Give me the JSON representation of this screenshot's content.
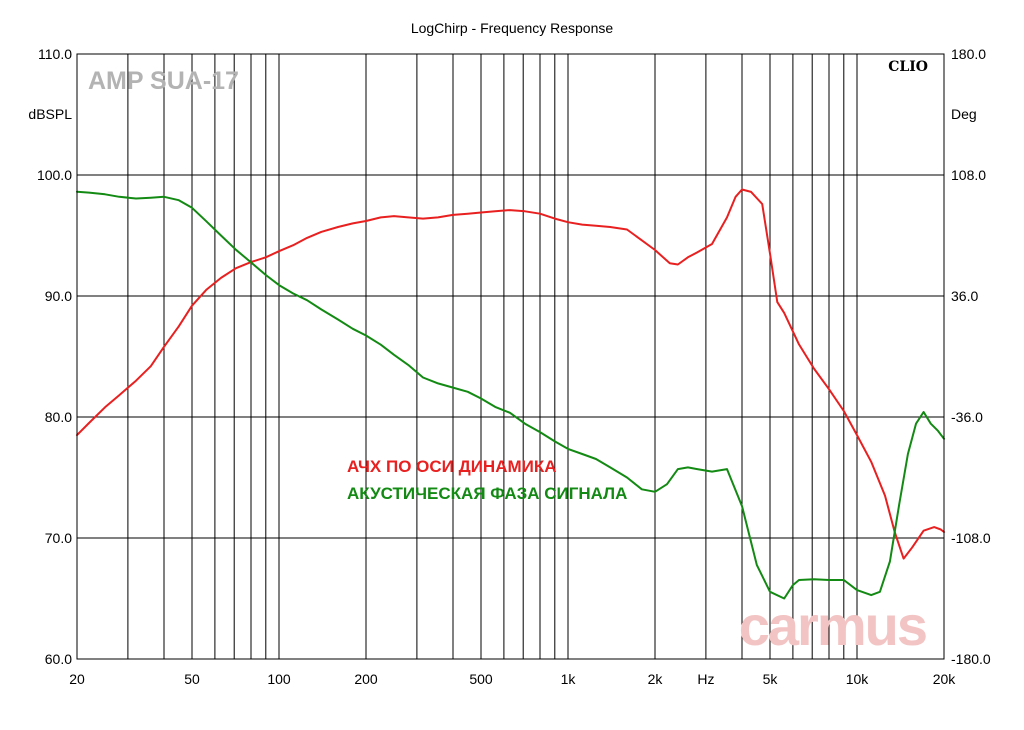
{
  "colors": {
    "background": "#ffffff",
    "plot_border": "#000000",
    "grid": "#000000",
    "magnitude_series": "#e82020",
    "phase_series": "#138a13",
    "watermark_model": "#b3b3b3",
    "watermark_site": "#f3c4c4"
  },
  "chart_data": {
    "type": "line",
    "title": "LogChirp - Frequency Response",
    "x_scale": "log",
    "xlim": [
      20,
      20000
    ],
    "x_ticks": [
      20,
      50,
      100,
      200,
      500,
      1000,
      2000,
      5000,
      10000,
      20000
    ],
    "x_tick_labels": [
      "20",
      "50",
      "100",
      "200",
      "500",
      "1k",
      "2k",
      "5k",
      "10k",
      "20k"
    ],
    "x_unit_label": "Hz",
    "x_unit_position": 3000,
    "ylabel_left": "dBSPL",
    "ylim_left": [
      60,
      110
    ],
    "y_ticks_left": [
      "60.0",
      "70.0",
      "80.0",
      "90.0",
      "100.0",
      "110.0"
    ],
    "ylabel_right": "Deg",
    "ylim_right": [
      -180,
      180
    ],
    "y_ticks_right": [
      "-180.0",
      "-108.0",
      "-36.0",
      "36.0",
      "108.0",
      "180.0"
    ],
    "grid": true,
    "watermark_model": "AMP SUA-17",
    "watermark_site": "carmus",
    "brand": "CLIO",
    "series": [
      {
        "name": "АЧХ ПО ОСИ ДИНАМИКА",
        "axis": "left",
        "color": "#e82020",
        "x": [
          20,
          22,
          25,
          28,
          32,
          36,
          40,
          45,
          50,
          56,
          63,
          71,
          80,
          90,
          100,
          112,
          125,
          140,
          160,
          180,
          200,
          225,
          250,
          280,
          315,
          355,
          400,
          450,
          500,
          560,
          630,
          710,
          800,
          900,
          1000,
          1120,
          1250,
          1400,
          1600,
          1800,
          2000,
          2250,
          2400,
          2600,
          2800,
          3150,
          3550,
          3800,
          4000,
          4300,
          4700,
          5000,
          5300,
          5600,
          6300,
          7100,
          8000,
          9000,
          10000,
          11200,
          12500,
          13500,
          14500,
          15500,
          17000,
          18500,
          19500,
          20000
        ],
        "values": [
          78.5,
          79.5,
          80.8,
          81.8,
          83.0,
          84.2,
          85.8,
          87.5,
          89.2,
          90.5,
          91.5,
          92.3,
          92.8,
          93.2,
          93.7,
          94.2,
          94.8,
          95.3,
          95.7,
          96.0,
          96.2,
          96.5,
          96.6,
          96.5,
          96.4,
          96.5,
          96.7,
          96.8,
          96.9,
          97.0,
          97.1,
          97.0,
          96.8,
          96.4,
          96.1,
          95.9,
          95.8,
          95.7,
          95.5,
          94.6,
          93.8,
          92.7,
          92.6,
          93.2,
          93.6,
          94.3,
          96.5,
          98.2,
          98.8,
          98.6,
          97.6,
          93.5,
          89.5,
          88.6,
          86.0,
          84.0,
          82.3,
          80.5,
          78.5,
          76.3,
          73.5,
          70.5,
          68.3,
          69.2,
          70.6,
          70.9,
          70.7,
          70.5
        ]
      },
      {
        "name": "АКУСТИЧЕСКАЯ ФАЗА СИГНАЛА",
        "axis": "right",
        "color": "#138a13",
        "x": [
          20,
          22,
          25,
          28,
          32,
          36,
          40,
          45,
          50,
          56,
          63,
          71,
          80,
          90,
          100,
          112,
          125,
          140,
          160,
          180,
          200,
          225,
          250,
          280,
          315,
          355,
          400,
          450,
          500,
          560,
          630,
          710,
          800,
          900,
          1000,
          1120,
          1250,
          1400,
          1600,
          1800,
          2000,
          2200,
          2400,
          2600,
          2800,
          3150,
          3550,
          4000,
          4500,
          5000,
          5600,
          6000,
          6300,
          7100,
          8000,
          9000,
          10000,
          11200,
          12000,
          13000,
          14000,
          15000,
          16000,
          17000,
          18000,
          19000,
          20000
        ],
        "values": [
          98,
          97.5,
          96.5,
          95,
          94,
          94.5,
          95,
          93,
          88.5,
          80.5,
          72,
          63.5,
          56,
          48.5,
          42.5,
          37.5,
          33.5,
          28,
          22,
          16.5,
          12.5,
          7,
          1,
          -5,
          -12.5,
          -16,
          -18.5,
          -21,
          -25,
          -30,
          -33.5,
          -40,
          -45,
          -50.5,
          -55,
          -58,
          -61,
          -66,
          -72,
          -79,
          -80.5,
          -76,
          -67,
          -66,
          -67,
          -68.5,
          -67,
          -89,
          -124,
          -140,
          -144,
          -136,
          -133,
          -132.5,
          -133,
          -133,
          -139,
          -142,
          -140,
          -122,
          -88,
          -58,
          -40,
          -33,
          -40,
          -44,
          -49
        ]
      }
    ]
  }
}
